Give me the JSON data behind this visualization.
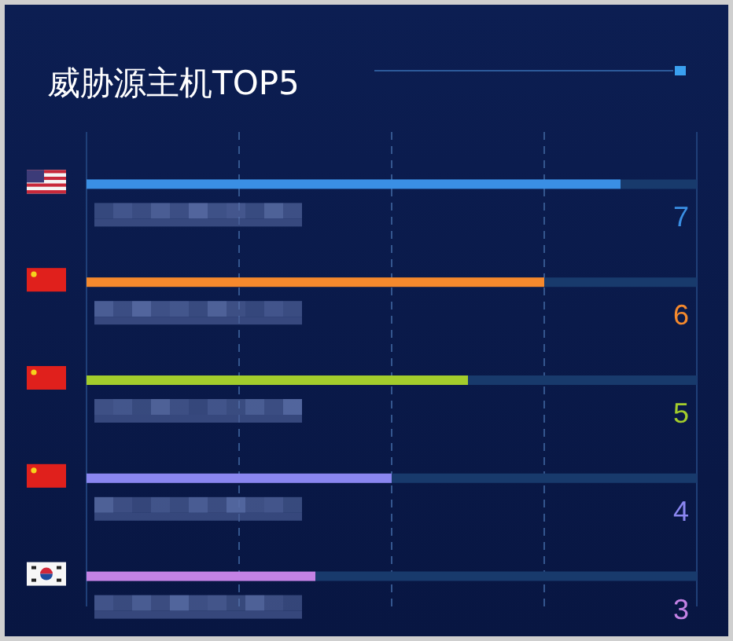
{
  "chart_data": {
    "type": "bar",
    "orientation": "horizontal",
    "title": "威胁源主机TOP5",
    "categories": [
      null,
      null,
      null,
      null,
      null
    ],
    "values": [
      7,
      6,
      5,
      4,
      3
    ],
    "colors": [
      "#3a8fe4",
      "#f5892d",
      "#a3cd2c",
      "#8a86f0",
      "#c482e4"
    ],
    "xlim": [
      0,
      8
    ],
    "xticks": [
      0,
      2,
      4,
      6,
      8
    ],
    "grid": "x",
    "tick_labels": false,
    "data_labels": true
  }
}
